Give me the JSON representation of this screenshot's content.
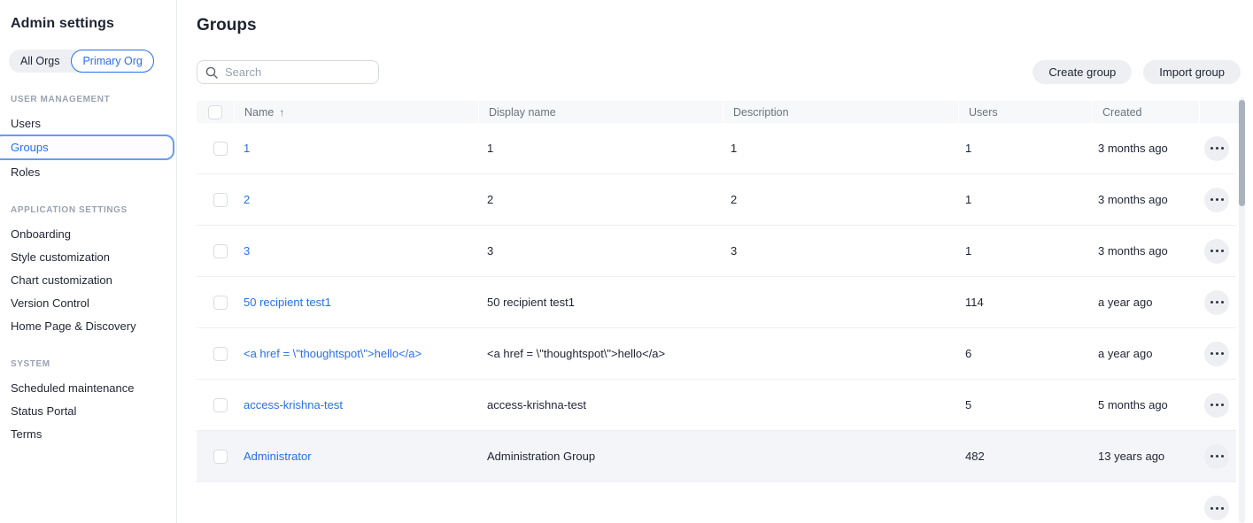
{
  "colors": {
    "accent_blue": "#2770ef",
    "selected_border_blue": "#699af7",
    "text_dark": "#1e2433",
    "text_gray": "#6a7380",
    "pill_gray": "#edeff3",
    "row_highlight": "#f4f5f8",
    "header_bg": "#f7f8fa"
  },
  "sidebar": {
    "title": "Admin settings",
    "org_toggle": {
      "options": [
        "All Orgs",
        "Primary Org"
      ],
      "selected": "Primary Org"
    },
    "sections": [
      {
        "label": "USER MANAGEMENT",
        "items": [
          {
            "label": "Users",
            "selected": false
          },
          {
            "label": "Groups",
            "selected": true
          },
          {
            "label": "Roles",
            "selected": false
          }
        ]
      },
      {
        "label": "APPLICATION SETTINGS",
        "items": [
          {
            "label": "Onboarding",
            "selected": false
          },
          {
            "label": "Style customization",
            "selected": false
          },
          {
            "label": "Chart customization",
            "selected": false
          },
          {
            "label": "Version Control",
            "selected": false
          },
          {
            "label": "Home Page & Discovery",
            "selected": false
          }
        ]
      },
      {
        "label": "SYSTEM",
        "items": [
          {
            "label": "Scheduled maintenance",
            "selected": false
          },
          {
            "label": "Status Portal",
            "selected": false
          },
          {
            "label": "Terms",
            "selected": false
          }
        ]
      }
    ]
  },
  "main": {
    "title": "Groups",
    "search": {
      "placeholder": "Search",
      "value": ""
    },
    "buttons": {
      "create": "Create group",
      "import": "Import group"
    },
    "table": {
      "columns": {
        "name": "Name",
        "display_name": "Display name",
        "description": "Description",
        "users": "Users",
        "created": "Created"
      },
      "sort": {
        "column": "Name",
        "direction": "asc",
        "icon": "↑"
      },
      "rows": [
        {
          "name": "1",
          "display_name": "1",
          "description": "1",
          "users": "1",
          "created": "3 months ago",
          "highlighted": false,
          "partial": false
        },
        {
          "name": "2",
          "display_name": "2",
          "description": "2",
          "users": "1",
          "created": "3 months ago",
          "highlighted": false,
          "partial": false
        },
        {
          "name": "3",
          "display_name": "3",
          "description": "3",
          "users": "1",
          "created": "3 months ago",
          "highlighted": false,
          "partial": false
        },
        {
          "name": "50 recipient test1",
          "display_name": "50 recipient test1",
          "description": "",
          "users": "114",
          "created": "a year ago",
          "highlighted": false,
          "partial": false
        },
        {
          "name": "<a href = \\\"thoughtspot\\\">hello</a>",
          "display_name": "<a href = \\\"thoughtspot\\\">hello</a>",
          "description": "",
          "users": "6",
          "created": "a year ago",
          "highlighted": false,
          "partial": false
        },
        {
          "name": "access-krishna-test",
          "display_name": "access-krishna-test",
          "description": "",
          "users": "5",
          "created": "5 months ago",
          "highlighted": false,
          "partial": false
        },
        {
          "name": "Administrator",
          "display_name": "Administration Group",
          "description": "",
          "users": "482",
          "created": "13 years ago",
          "highlighted": true,
          "partial": false
        },
        {
          "name": "",
          "display_name": "",
          "description": "",
          "users": "",
          "created": "",
          "highlighted": false,
          "partial": true
        }
      ]
    }
  }
}
